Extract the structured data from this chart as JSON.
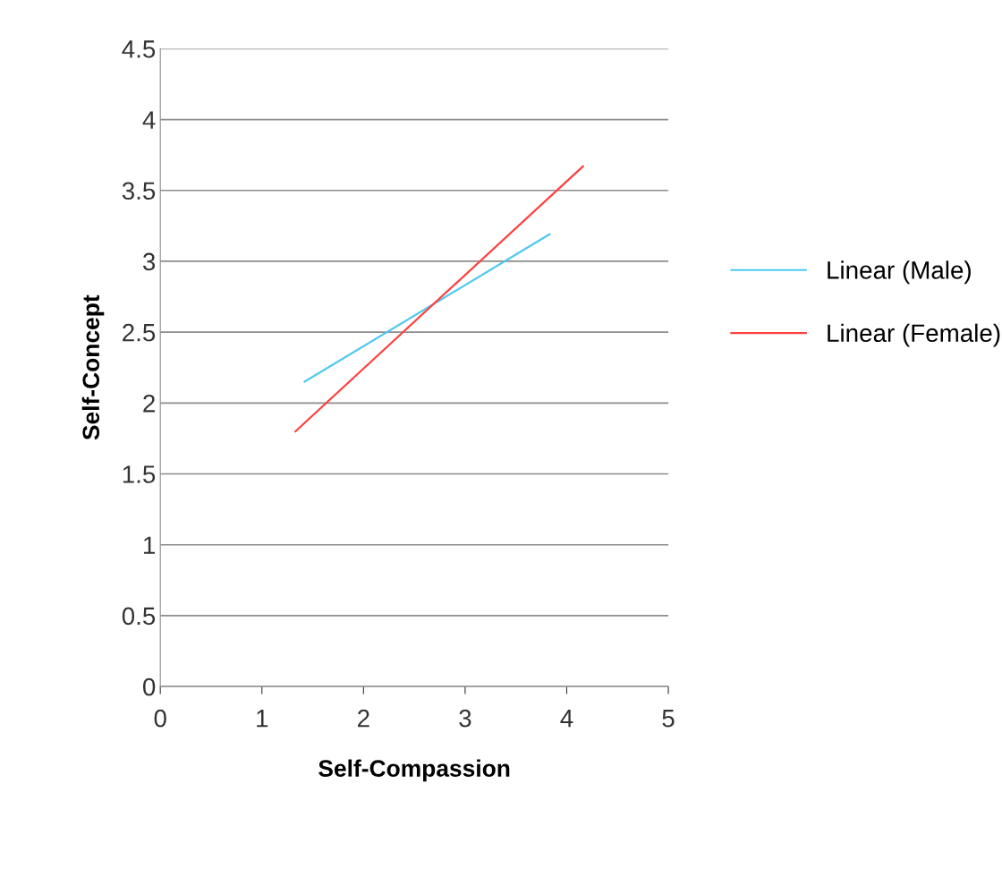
{
  "chart_data": {
    "type": "line",
    "xlabel": "Self-Compassion",
    "ylabel": "Self-Concept",
    "series": [
      {
        "name": "Linear (Male)",
        "color": "#4ec8f0",
        "x": [
          1.42,
          3.83
        ],
        "values": [
          2.15,
          3.19
        ]
      },
      {
        "name": "Linear (Female)",
        "color": "#ff4040",
        "x": [
          1.33,
          4.16
        ],
        "values": [
          1.8,
          3.67
        ]
      }
    ],
    "xlim": [
      0,
      5
    ],
    "xticks": [
      0,
      1,
      2,
      3,
      4,
      5
    ],
    "ylim": [
      0,
      4.5
    ],
    "yticks": [
      0,
      0.5,
      1,
      1.5,
      2,
      2.5,
      3,
      3.5,
      4,
      4.5
    ],
    "grid": "y",
    "legend": "right",
    "marker": "none",
    "line_style": "solid"
  }
}
